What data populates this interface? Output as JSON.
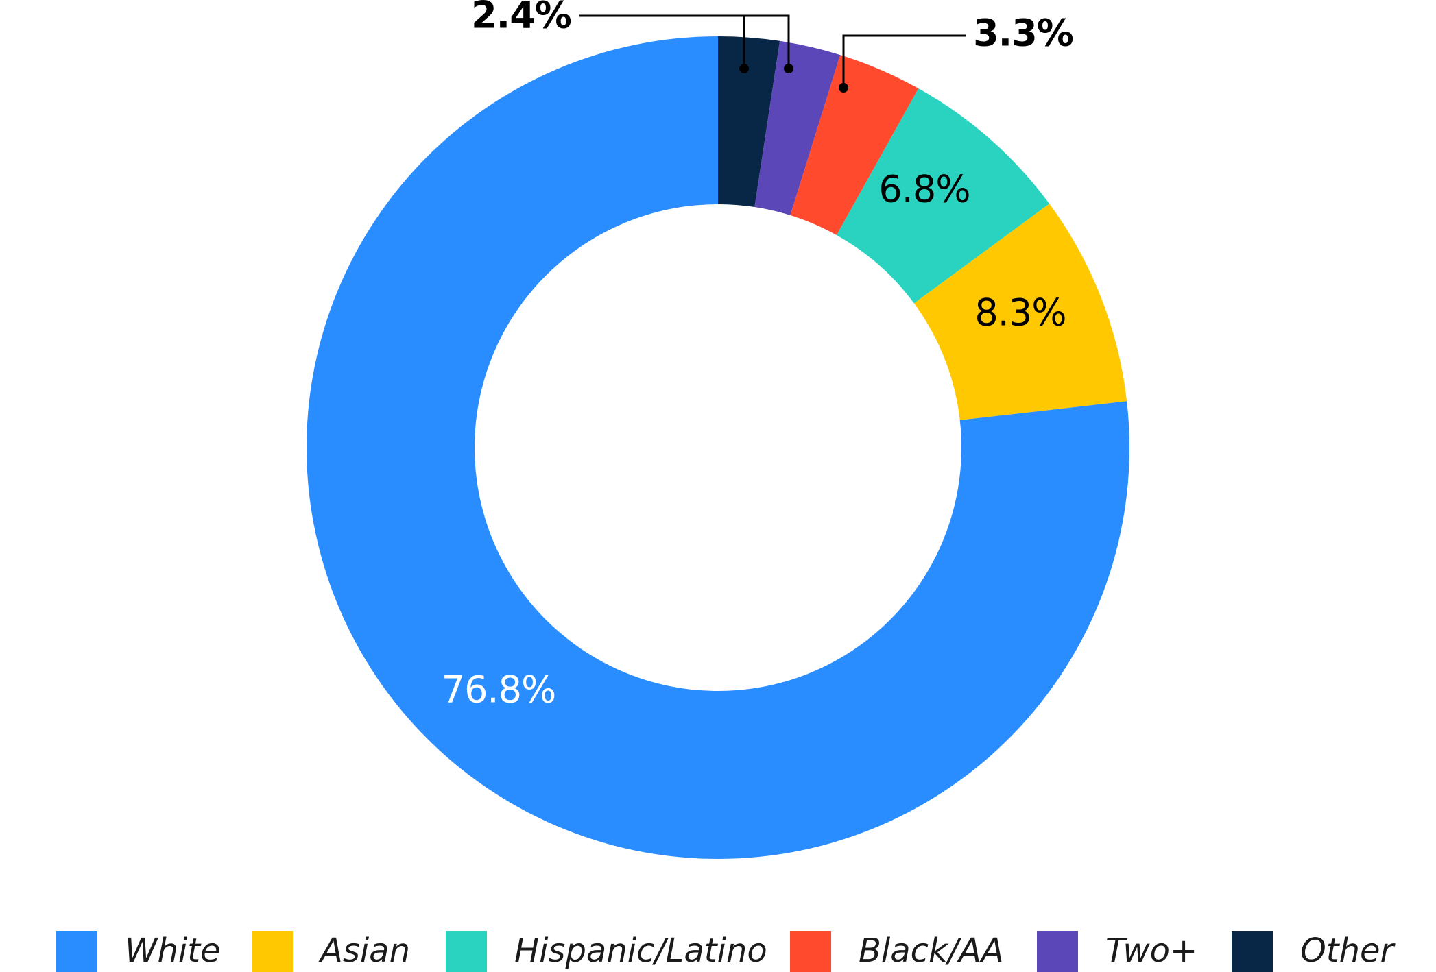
{
  "chart_data": {
    "type": "pie",
    "donut": true,
    "legend_position": "bottom",
    "slices": [
      {
        "name": "White",
        "value": 76.8,
        "label": "76.8%",
        "color": "#2A8DFF",
        "label_color": "#ffffff"
      },
      {
        "name": "Asian",
        "value": 8.3,
        "label": "8.3%",
        "color": "#FFC800",
        "label_color": "#000000"
      },
      {
        "name": "Hispanic/Latino",
        "value": 6.8,
        "label": "6.8%",
        "color": "#29D3C0",
        "label_color": "#000000"
      },
      {
        "name": "Black/AA",
        "value": 3.3,
        "label": "3.3%",
        "color": "#FF4A2E",
        "label_color": "#000000"
      },
      {
        "name": "Two+",
        "value": 2.4,
        "label": "2.4%",
        "color": "#5B47B8",
        "label_color": "#000000"
      },
      {
        "name": "Other",
        "value": 2.4,
        "label": "",
        "color": "#082746",
        "label_color": "#000000"
      }
    ]
  }
}
